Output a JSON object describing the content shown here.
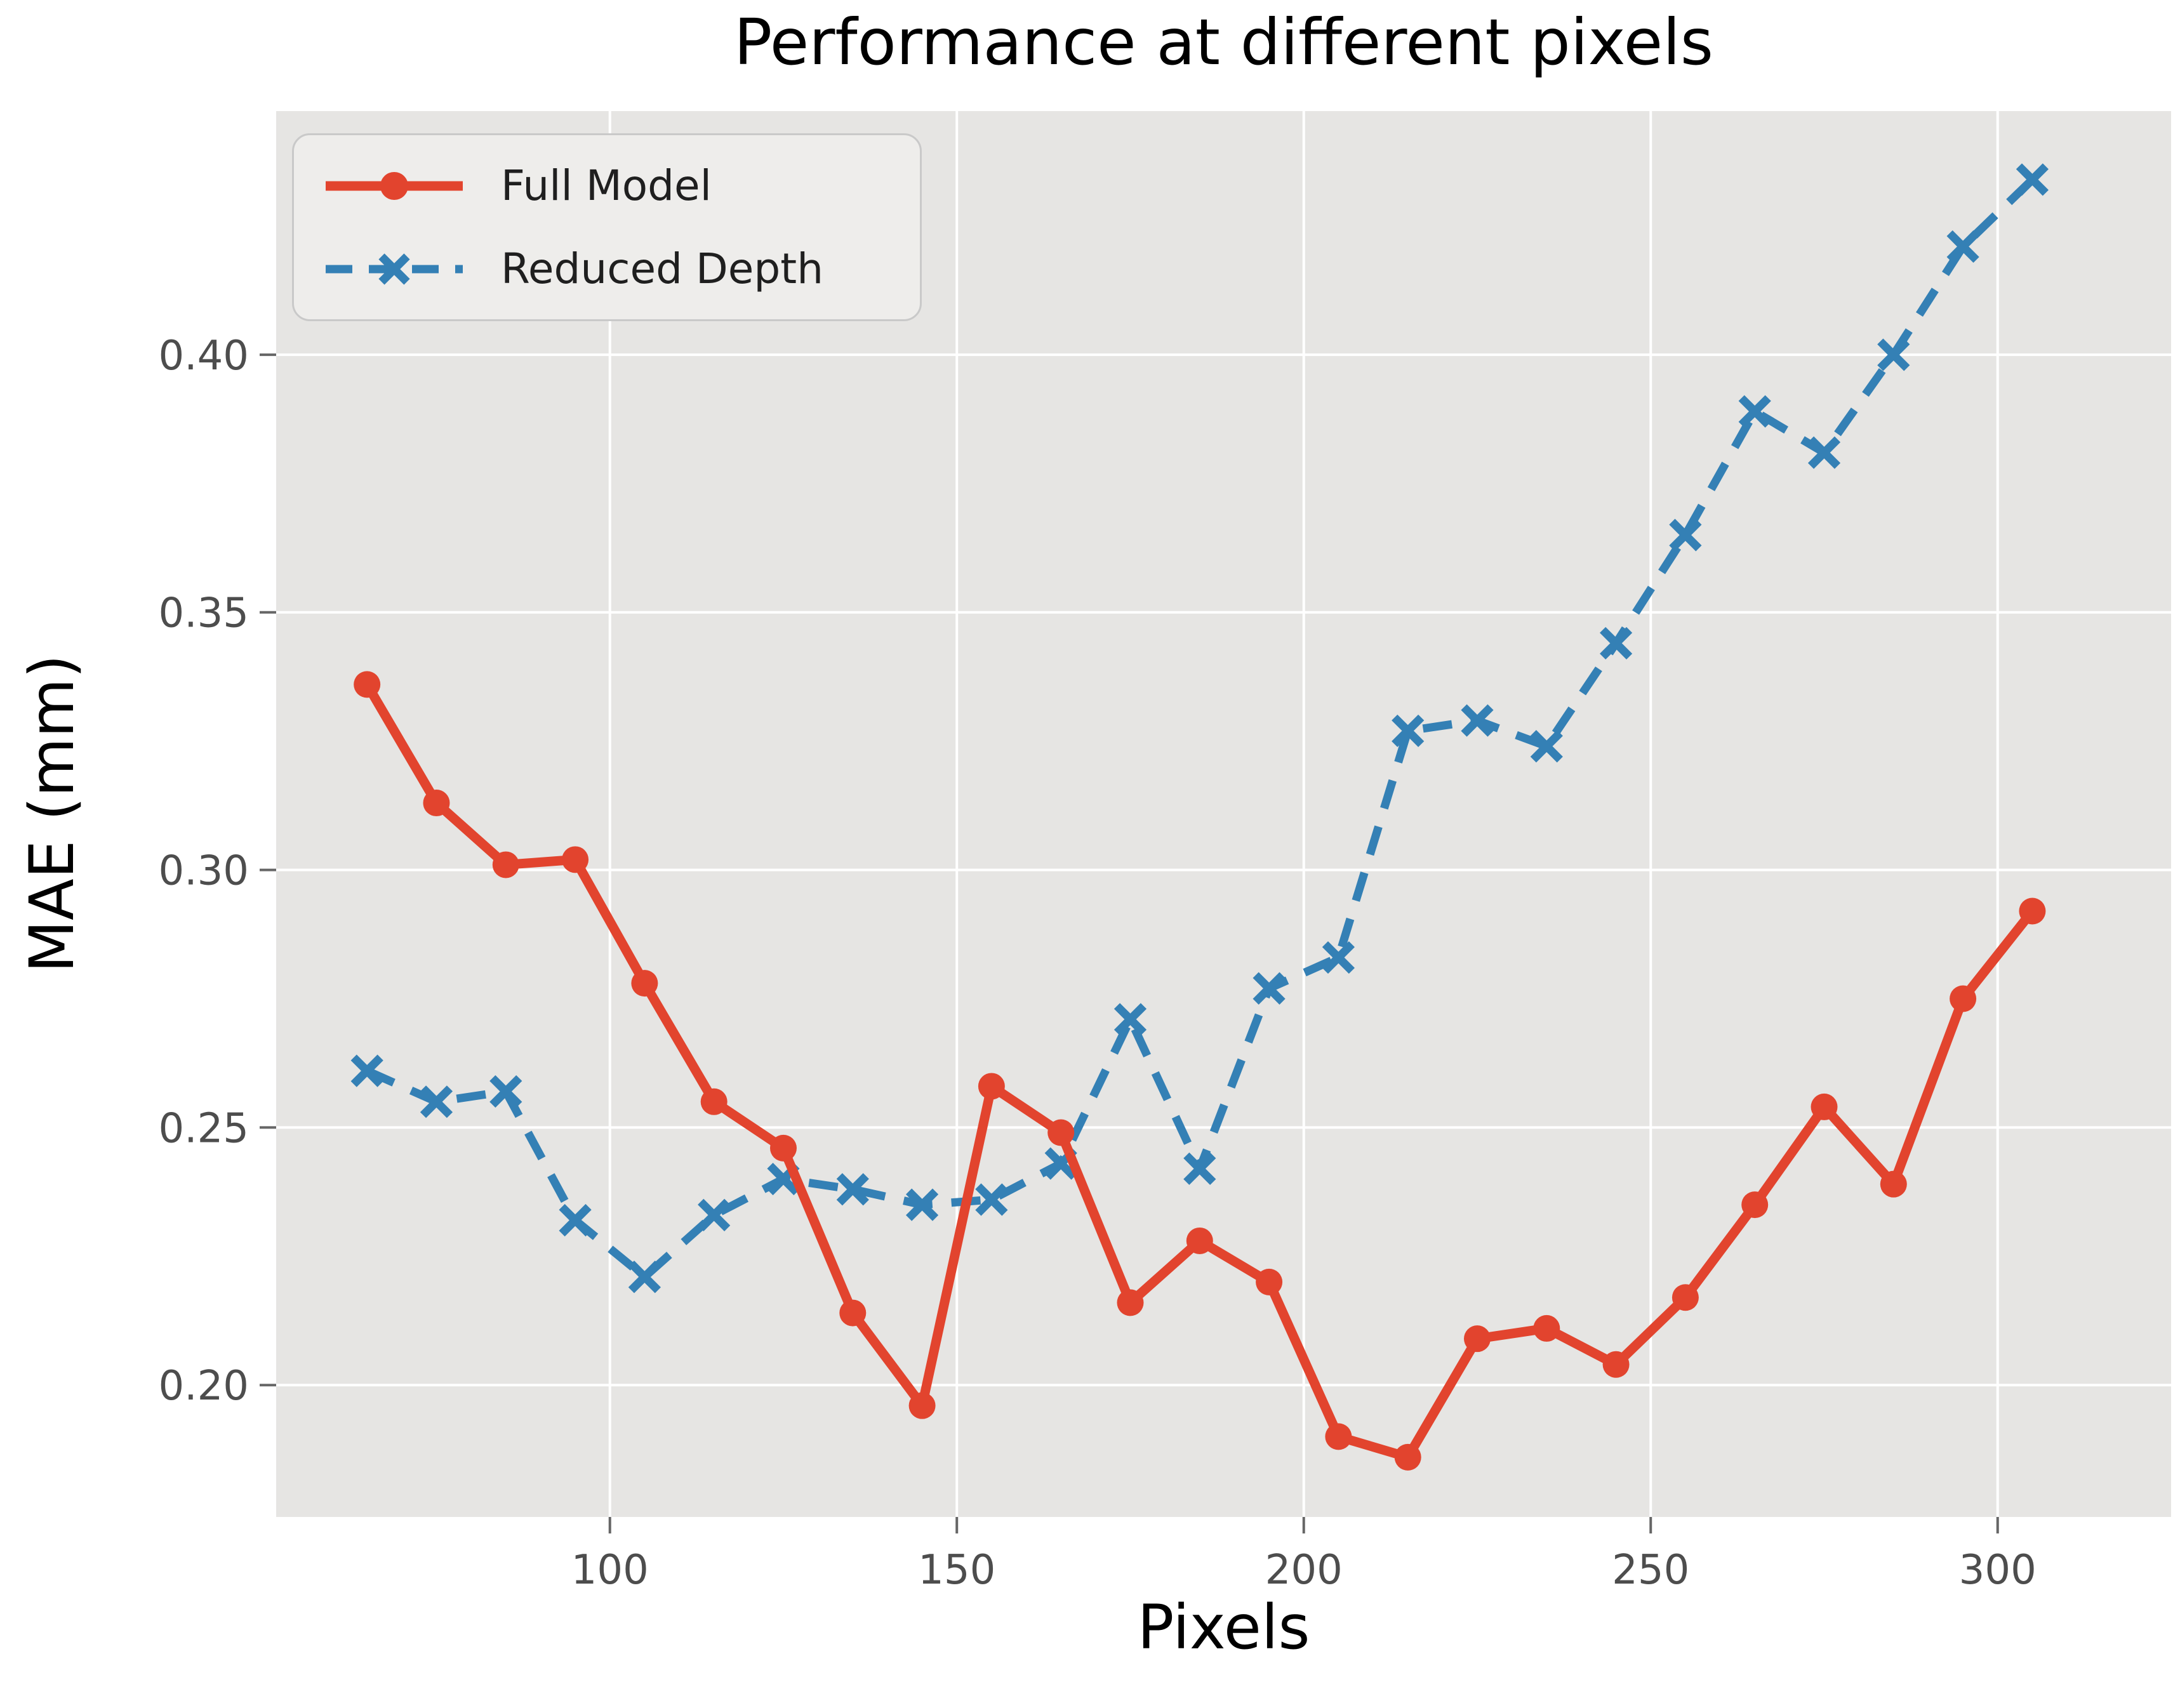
{
  "title": "Performance at different pixels",
  "legend": {
    "items": [
      {
        "label": "Full Model"
      },
      {
        "label": "Reduced Depth"
      }
    ]
  },
  "chart_data": {
    "type": "line",
    "title": "Performance at different pixels",
    "xlabel": "Pixels",
    "ylabel": "MAE (mm)",
    "x": [
      65,
      75,
      85,
      95,
      105,
      115,
      125,
      135,
      145,
      155,
      165,
      175,
      185,
      195,
      205,
      215,
      225,
      235,
      245,
      255,
      265,
      275,
      285,
      295,
      305
    ],
    "series": [
      {
        "name": "Full Model",
        "color": "#e2442e",
        "line_style": "solid",
        "marker": "circle",
        "values": [
          0.336,
          0.313,
          0.301,
          0.302,
          0.278,
          0.255,
          0.246,
          0.214,
          0.196,
          0.258,
          0.249,
          0.216,
          0.228,
          0.22,
          0.19,
          0.186,
          0.209,
          0.211,
          0.204,
          0.217,
          0.235,
          0.254,
          0.239,
          0.275,
          0.292
        ]
      },
      {
        "name": "Reduced Depth",
        "color": "#3480b5",
        "line_style": "dashed",
        "marker": "x",
        "values": [
          0.261,
          0.255,
          0.257,
          0.232,
          0.221,
          0.233,
          0.24,
          0.238,
          0.235,
          0.236,
          0.243,
          0.271,
          0.242,
          0.277,
          0.283,
          0.327,
          0.329,
          0.324,
          0.344,
          0.365,
          0.389,
          0.381,
          0.4,
          0.421,
          0.434
        ]
      }
    ],
    "xlim": [
      51.9,
      325
    ],
    "ylim": [
      0.1744,
      0.4473
    ],
    "xticks": [
      100,
      150,
      200,
      250,
      300
    ],
    "xtick_labels": [
      "100",
      "150",
      "200",
      "250",
      "300"
    ],
    "yticks": [
      0.2,
      0.25,
      0.3,
      0.35,
      0.4
    ],
    "ytick_labels": [
      "0.20",
      "0.25",
      "0.30",
      "0.35",
      "0.40"
    ],
    "grid": true,
    "legend_position": "upper left",
    "plot_bg_color": "#e6e5e3",
    "grid_color": "#ffffff",
    "tick_label_color": "#4d4d4d",
    "tick_mark_color": "#666666"
  }
}
